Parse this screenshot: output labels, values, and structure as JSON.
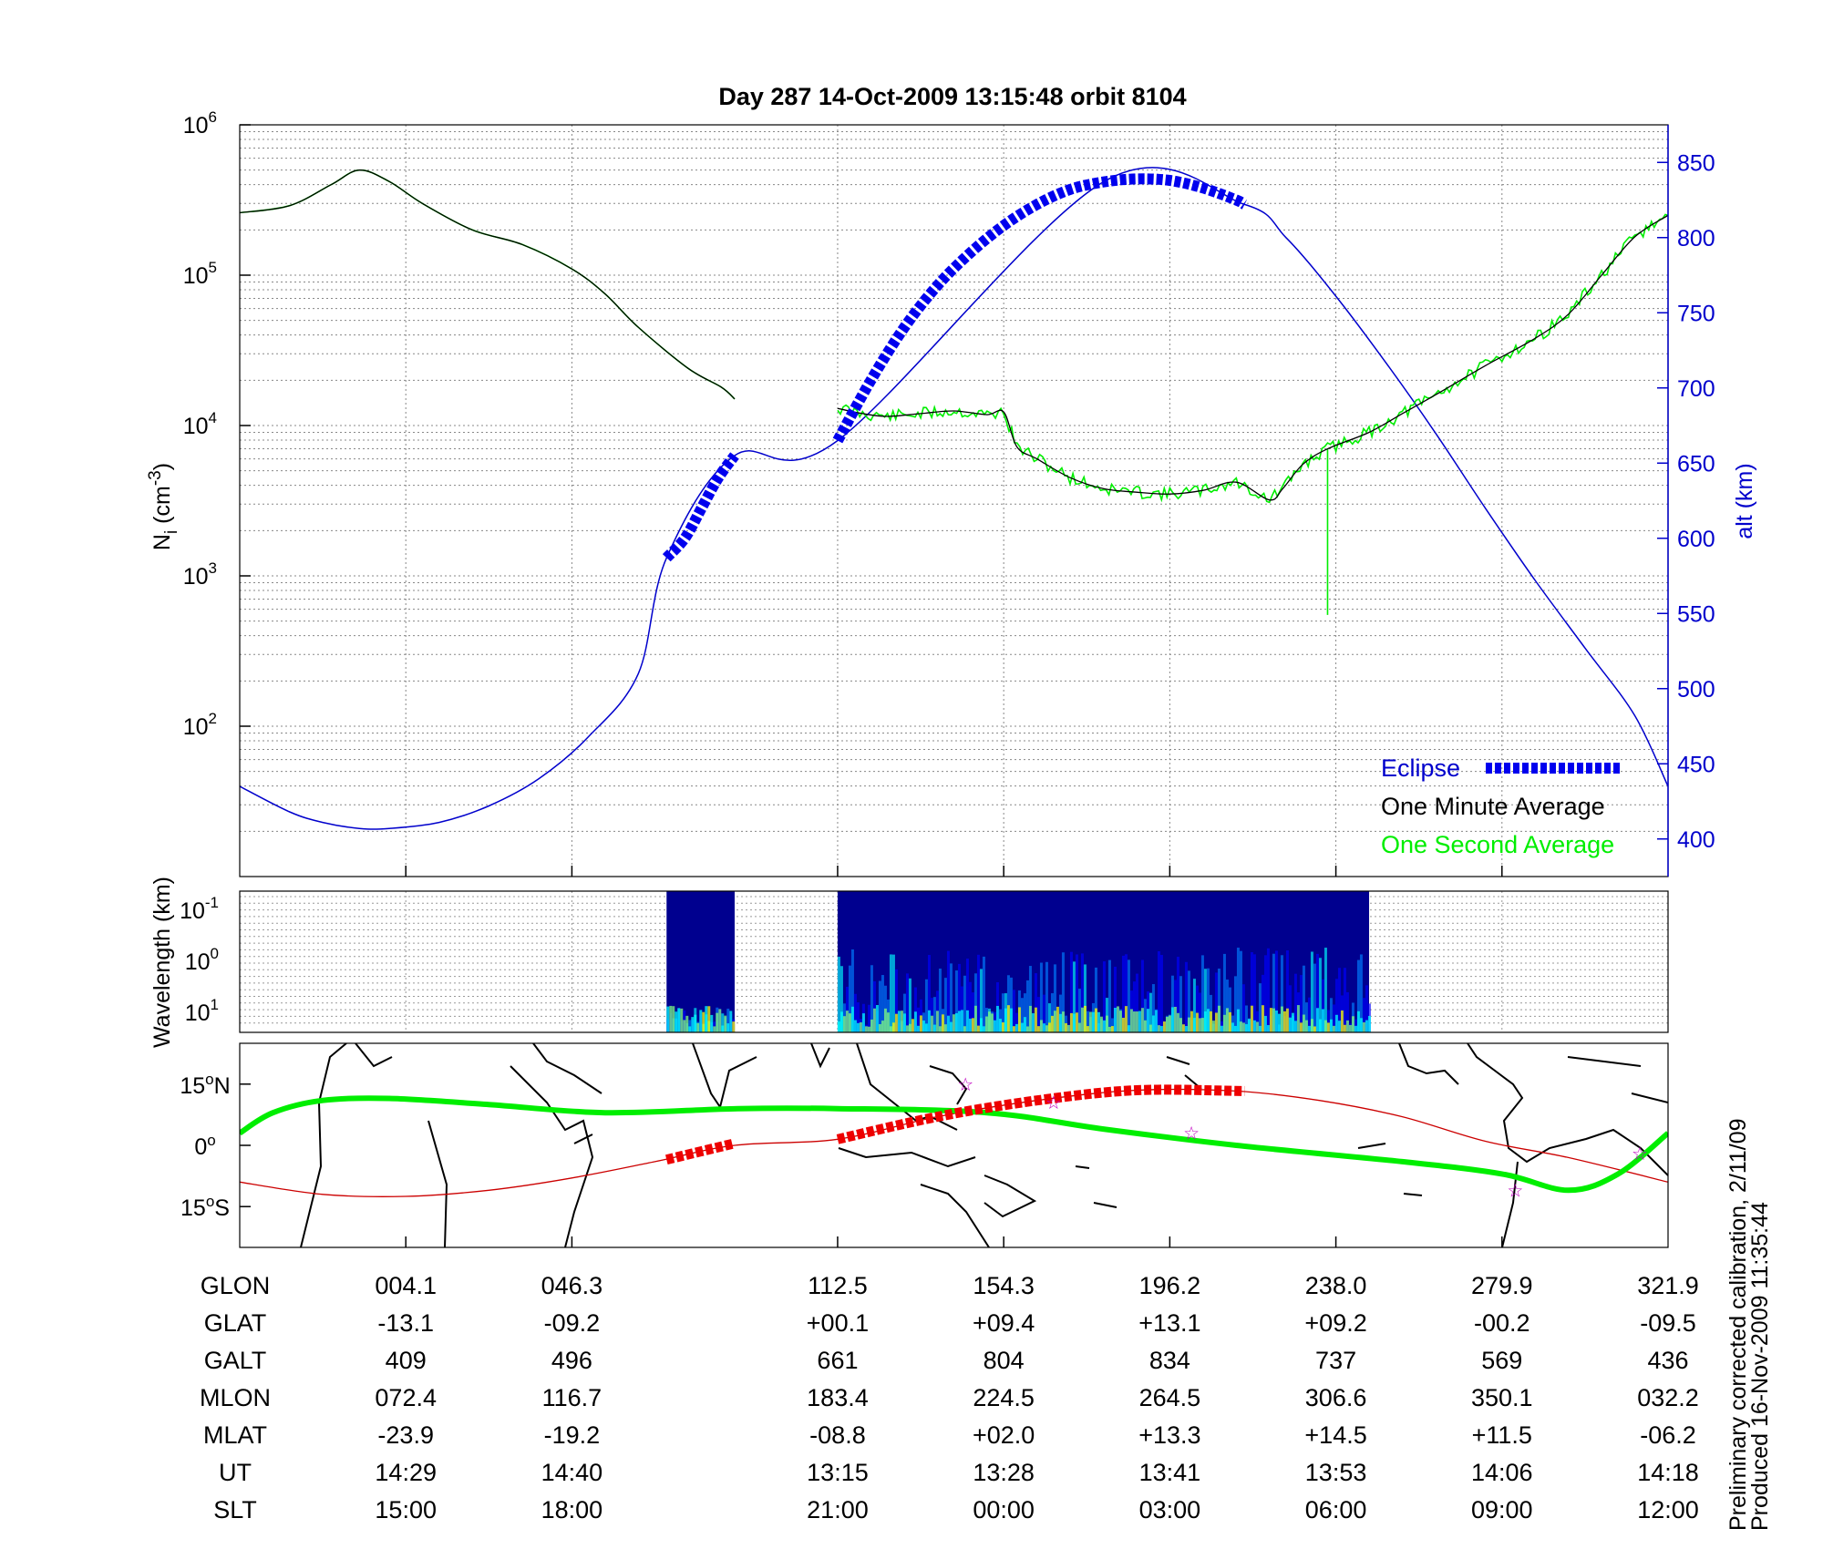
{
  "chart_data": [
    {
      "panel": "density-altitude",
      "type": "line",
      "title": "Day 287  14-Oct-2009 13:15:48   orbit 8104",
      "ylabel": "N_i (cm^-3)",
      "ylabel_main": "N",
      "ylabel_sub": "i",
      "ylabel_unit": "(cm",
      "ylabel_exp": "-3",
      "ylabel_close": ")",
      "yscale": "log",
      "ylim": [
        10,
        1000000
      ],
      "y_ticks": [
        {
          "value": 100,
          "base": "10",
          "exp": "2"
        },
        {
          "value": 1000,
          "base": "10",
          "exp": "3"
        },
        {
          "value": 10000,
          "base": "10",
          "exp": "4"
        },
        {
          "value": 100000,
          "base": "10",
          "exp": "5"
        },
        {
          "value": 1000000,
          "base": "10",
          "exp": "6"
        }
      ],
      "y2label": "alt (km)",
      "y2lim": [
        375,
        875
      ],
      "y2_ticks": [
        "400",
        "450",
        "500",
        "550",
        "600",
        "650",
        "700",
        "750",
        "800",
        "850"
      ],
      "xlim": [
        0,
        8.6
      ],
      "legend_position": "bottom-right",
      "series": [
        {
          "name": "Eclipse",
          "color": "#0000ee",
          "style": "thick-dashed",
          "segments": [
            {
              "x": [
                2.57,
                2.68,
                2.78,
                2.88,
                2.98
              ],
              "y": [
                587,
                600,
                620,
                640,
                655
              ]
            },
            {
              "x": [
                3.6,
                3.8,
                4.0,
                4.2,
                4.4,
                4.6,
                4.8,
                5.0,
                5.2,
                5.4,
                5.6,
                5.8,
                6.0,
                6.05
              ],
              "y": [
                665,
                705,
                740,
                768,
                790,
                808,
                822,
                832,
                837,
                839,
                838,
                833,
                825,
                822
              ]
            }
          ]
        },
        {
          "name": "alt (km)",
          "color": "#0000cc",
          "style": "thin",
          "x": [
            0,
            0.3,
            0.5,
            0.72,
            0.9,
            1.2,
            1.5,
            1.8,
            2.1,
            2.4,
            2.57,
            2.98,
            3.6,
            5.2,
            6.05,
            6.3,
            6.6,
            6.9,
            7.2,
            7.5,
            7.8,
            8.1,
            8.4,
            8.6
          ],
          "y": [
            435,
            418,
            411,
            407,
            407,
            411,
            422,
            440,
            468,
            510,
            587,
            655,
            665,
            837,
            822,
            800,
            761,
            717,
            670,
            620,
            572,
            527,
            482,
            435
          ]
        },
        {
          "name": "One Minute Average",
          "color": "#000000",
          "style": "thin",
          "segments": [
            {
              "x": [
                0,
                0.3,
                0.55,
                0.72,
                0.9,
                1.1,
                1.4,
                1.7,
                2.0,
                2.2,
                2.4,
                2.7,
                2.9,
                2.98
              ],
              "y": [
                260000,
                290000,
                400000,
                500000,
                420000,
                300000,
                200000,
                160000,
                110000,
                75000,
                45000,
                24000,
                18000,
                15000
              ]
            },
            {
              "x": [
                3.6,
                3.75,
                3.9,
                4.1,
                4.3,
                4.5,
                4.6,
                4.68,
                4.8,
                5.0,
                5.2,
                5.4,
                5.6,
                5.8,
                6.0,
                6.2,
                6.28,
                6.4,
                6.55,
                6.8,
                7.0,
                7.2,
                7.5,
                7.8,
                8.0,
                8.2,
                8.4,
                8.6
              ],
              "y": [
                13000,
                12000,
                11500,
                12000,
                12500,
                11800,
                12300,
                7200,
                6000,
                4500,
                3800,
                3600,
                3500,
                3700,
                4200,
                3200,
                3800,
                5500,
                7000,
                9000,
                12000,
                16000,
                25000,
                38000,
                55000,
                100000,
                180000,
                250000
              ]
            }
          ]
        },
        {
          "name": "One Second Average",
          "color": "#00ee00",
          "style": "thin-noisy",
          "segments": [
            {
              "x": [
                0,
                0.3,
                0.55,
                0.72,
                0.9,
                1.1,
                1.4,
                1.7,
                2.0,
                2.2,
                2.4,
                2.7,
                2.9,
                2.98
              ],
              "y": [
                260000,
                290000,
                400000,
                500000,
                420000,
                300000,
                200000,
                160000,
                110000,
                75000,
                45000,
                24000,
                18000,
                15000
              ]
            },
            {
              "x": [
                3.6,
                3.75,
                3.9,
                4.1,
                4.3,
                4.5,
                4.6,
                4.68,
                4.8,
                5.0,
                5.2,
                5.4,
                5.6,
                5.8,
                6.0,
                6.2,
                6.28,
                6.4,
                6.55,
                6.8,
                7.0,
                7.2,
                7.5,
                7.8,
                8.0,
                8.2,
                8.4,
                8.6
              ],
              "y": [
                13000,
                12000,
                11500,
                12000,
                12500,
                11800,
                12300,
                7200,
                6000,
                4500,
                3800,
                3600,
                3500,
                3700,
                4200,
                3200,
                3800,
                5500,
                7000,
                9000,
                12000,
                16000,
                25000,
                38000,
                55000,
                100000,
                180000,
                250000
              ]
            }
          ],
          "spike": {
            "x": 6.55,
            "y_from": 7000,
            "y_to": 550
          }
        }
      ],
      "legend": [
        {
          "label": "Eclipse",
          "color": "#0000cc"
        },
        {
          "label": "One Minute Average",
          "color": "#000000"
        },
        {
          "label": "One Second Average",
          "color": "#00ee00"
        }
      ]
    },
    {
      "panel": "spectrogram",
      "type": "heatmap",
      "ylabel": "Wavelength (km)",
      "yscale": "log",
      "y_ticks": [
        {
          "base": "10",
          "exp": "-1"
        },
        {
          "base": "10",
          "exp": "0"
        },
        {
          "base": "10",
          "exp": "1"
        }
      ],
      "data_intervals": [
        [
          2.57,
          2.98
        ],
        [
          3.6,
          6.8
        ]
      ],
      "colormap": [
        "#00008f",
        "#0000ff",
        "#0080ff",
        "#00ffff",
        "#80ff80",
        "#ffff00"
      ]
    },
    {
      "panel": "ground-track-map",
      "type": "line",
      "y_ticks": [
        {
          "value": 15,
          "label": "15",
          "deg": "o",
          "hemi": "N"
        },
        {
          "value": 0,
          "label": "0",
          "deg": "o",
          "hemi": ""
        },
        {
          "value": -15,
          "label": "15",
          "deg": "o",
          "hemi": "S"
        }
      ],
      "ylim": [
        -25,
        25
      ],
      "series": [
        {
          "name": "satellite track",
          "color": "#cc0000",
          "x": [
            0,
            0.5,
            1.0,
            1.5,
            2.0,
            2.5,
            2.98,
            3.6,
            4.2,
            4.8,
            5.4,
            6.0,
            6.5,
            7.0,
            7.5,
            8.0,
            8.6
          ],
          "y": [
            -9,
            -12,
            -12.5,
            -11,
            -8,
            -4,
            0,
            1.5,
            7,
            11,
            13.5,
            13.3,
            11,
            7,
            1,
            -3,
            -9
          ]
        },
        {
          "name": "magnetic equator",
          "color": "#00ee00",
          "x": [
            0,
            0.2,
            0.5,
            0.9,
            1.5,
            2.2,
            3.0,
            3.6,
            4.5,
            5.2,
            6.0,
            7.0,
            7.6,
            8.0,
            8.3,
            8.6
          ],
          "y": [
            3,
            8,
            11,
            11.5,
            10,
            8,
            9,
            9,
            8,
            4,
            0,
            -4,
            -7,
            -11,
            -7,
            3
          ]
        },
        {
          "name": "eclipse track",
          "color": "#ee0000",
          "style": "thick-dashed",
          "segments": [
            {
              "x": [
                2.57,
                2.98
              ],
              "y": [
                -3.5,
                0.5
              ]
            },
            {
              "x": [
                3.6,
                4.2,
                4.8,
                5.4,
                6.05
              ],
              "y": [
                1.5,
                7,
                11,
                13.5,
                13.3
              ]
            }
          ]
        }
      ],
      "markers": [
        {
          "x": 4.37,
          "y": 15,
          "symbol": "star"
        },
        {
          "x": 4.9,
          "y": 10.5,
          "symbol": "star"
        },
        {
          "x": 5.73,
          "y": 3,
          "symbol": "star"
        },
        {
          "x": 7.68,
          "y": -11,
          "symbol": "star"
        },
        {
          "x": 8.43,
          "y": -2,
          "symbol": "star"
        }
      ]
    }
  ],
  "orbit_table": {
    "row_labels": [
      "GLON",
      "GLAT",
      "GALT",
      "MLON",
      "MLAT",
      "UT",
      "SLT"
    ],
    "columns": [
      {
        "x": 1.0,
        "values": [
          "004.1",
          "-13.1",
          "409",
          "072.4",
          "-23.9",
          "14:29",
          "15:00"
        ]
      },
      {
        "x": 2.0,
        "values": [
          "046.3",
          "-09.2",
          "496",
          "116.7",
          "-19.2",
          "14:40",
          "18:00"
        ]
      },
      {
        "x": 3.6,
        "values": [
          "112.5",
          "+00.1",
          "661",
          "183.4",
          "-08.8",
          "13:15",
          "21:00"
        ]
      },
      {
        "x": 4.6,
        "values": [
          "154.3",
          "+09.4",
          "804",
          "224.5",
          "+02.0",
          "13:28",
          "00:00"
        ]
      },
      {
        "x": 5.6,
        "values": [
          "196.2",
          "+13.1",
          "834",
          "264.5",
          "+13.3",
          "13:41",
          "03:00"
        ]
      },
      {
        "x": 6.6,
        "values": [
          "238.0",
          "+09.2",
          "737",
          "306.6",
          "+14.5",
          "13:53",
          "06:00"
        ]
      },
      {
        "x": 7.6,
        "values": [
          "279.9",
          "-00.2",
          "569",
          "350.1",
          "+11.5",
          "14:06",
          "09:00"
        ]
      },
      {
        "x": 8.6,
        "values": [
          "321.9",
          "-09.5",
          "436",
          "032.2",
          "-06.2",
          "14:18",
          "12:00"
        ]
      }
    ]
  },
  "footnote": {
    "line1": "Preliminary corrected calibration, 2/11/09",
    "line2": "Produced 16-Nov-2009 11:35:44"
  }
}
